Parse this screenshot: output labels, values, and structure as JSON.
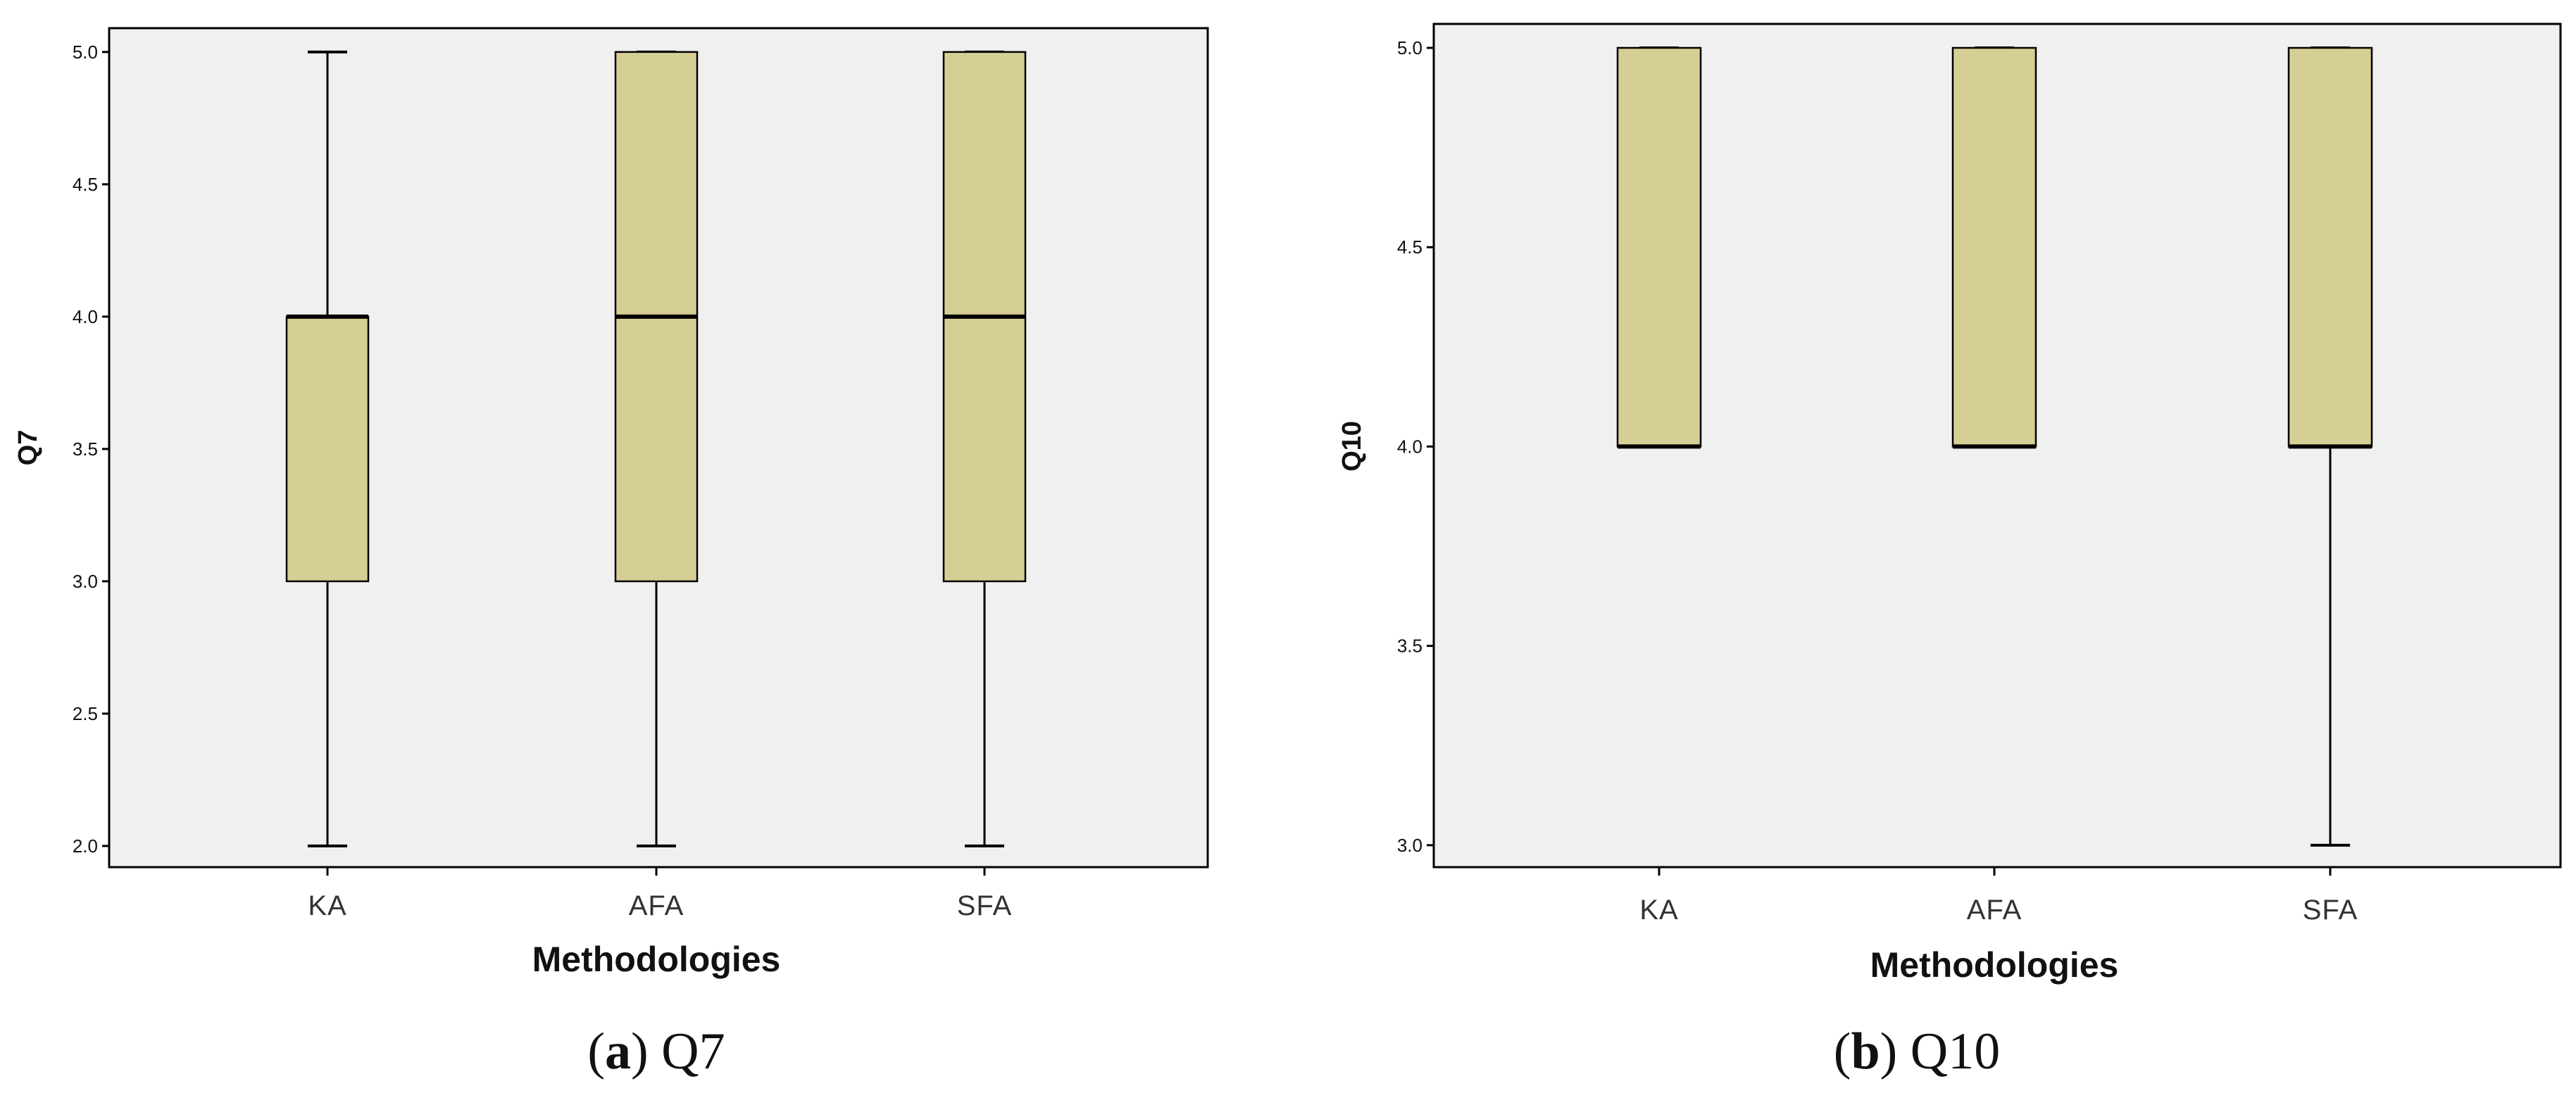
{
  "chart_data": [
    {
      "type": "boxplot",
      "caption_letter": "a",
      "caption_text": "Q7",
      "xlabel": "Methodologies",
      "ylabel": "Q7",
      "ylim": [
        1.92,
        5.09
      ],
      "yticks": [
        2.0,
        2.5,
        3.0,
        3.5,
        4.0,
        4.5,
        5.0
      ],
      "grid": false,
      "colors": {
        "box_fill": "#d5cf96",
        "plot_bg": "#f0f0f0",
        "stroke": "#000000"
      },
      "categories": [
        "KA",
        "AFA",
        "SFA"
      ],
      "boxes": [
        {
          "category": "KA",
          "min": 2.0,
          "q1": 3.0,
          "median": 4.0,
          "q3": 4.0,
          "max": 5.0
        },
        {
          "category": "AFA",
          "min": 2.0,
          "q1": 3.0,
          "median": 4.0,
          "q3": 5.0,
          "max": 5.0
        },
        {
          "category": "SFA",
          "min": 2.0,
          "q1": 3.0,
          "median": 4.0,
          "q3": 5.0,
          "max": 5.0
        }
      ]
    },
    {
      "type": "boxplot",
      "caption_letter": "b",
      "caption_text": "Q10",
      "xlabel": "Methodologies",
      "ylabel": "Q10",
      "ylim": [
        2.945,
        5.06
      ],
      "yticks": [
        3.0,
        3.5,
        4.0,
        4.5,
        5.0
      ],
      "grid": false,
      "colors": {
        "box_fill": "#d5cf96",
        "plot_bg": "#f0f0f0",
        "stroke": "#000000"
      },
      "categories": [
        "KA",
        "AFA",
        "SFA"
      ],
      "boxes": [
        {
          "category": "KA",
          "min": 4.0,
          "q1": 4.0,
          "median": 4.0,
          "q3": 5.0,
          "max": 5.0
        },
        {
          "category": "AFA",
          "min": 4.0,
          "q1": 4.0,
          "median": 4.0,
          "q3": 5.0,
          "max": 5.0
        },
        {
          "category": "SFA",
          "min": 3.0,
          "q1": 4.0,
          "median": 4.0,
          "q3": 5.0,
          "max": 5.0
        }
      ]
    }
  ]
}
